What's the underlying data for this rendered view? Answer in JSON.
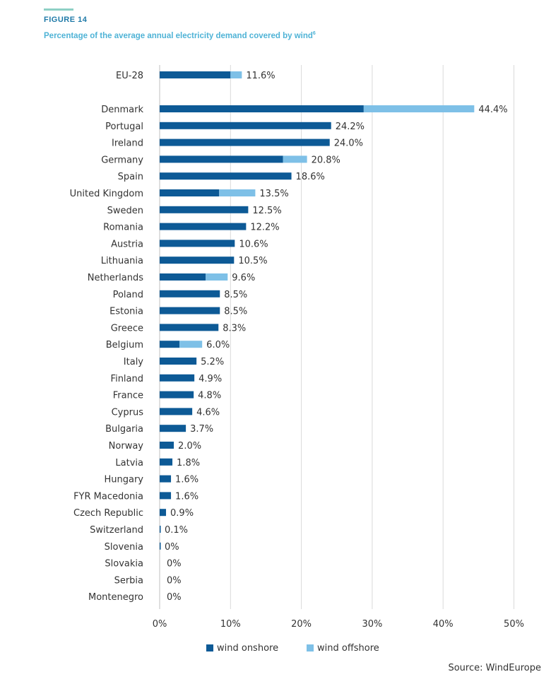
{
  "figure_label": "FIGURE 14",
  "title": "Percentage of the average annual electricity demand covered by wind",
  "title_footnote": "6",
  "source": "Source: WindEurope",
  "colors": {
    "onshore": "#0d5a96",
    "offshore": "#7ec0e7",
    "grid": "#d9d9d9",
    "accent_rule": "#8ed0c5"
  },
  "chart_data": {
    "type": "bar",
    "orientation": "horizontal",
    "stacked": true,
    "xlim": [
      0,
      50
    ],
    "xticks": [
      0,
      10,
      20,
      30,
      40,
      50
    ],
    "tick_labels": [
      "0%",
      "10%",
      "20%",
      "30%",
      "40%",
      "50%"
    ],
    "legend_position": "bottom",
    "grid": true,
    "series": [
      {
        "name": "wind onshore",
        "color": "#0d5a96",
        "values": [
          10.0,
          28.8,
          24.2,
          24.0,
          17.4,
          18.6,
          8.4,
          12.5,
          12.2,
          10.6,
          10.5,
          6.5,
          8.5,
          8.5,
          8.3,
          2.8,
          5.2,
          4.9,
          4.8,
          4.6,
          3.7,
          2.0,
          1.8,
          1.6,
          1.6,
          0.9,
          0.1,
          0.1,
          0,
          0,
          0
        ]
      },
      {
        "name": "wind offshore",
        "color": "#7ec0e7",
        "values": [
          1.6,
          15.6,
          0,
          0,
          3.4,
          0,
          5.1,
          0,
          0,
          0,
          0,
          3.1,
          0,
          0,
          0,
          3.2,
          0,
          0,
          0,
          0,
          0,
          0,
          0,
          0,
          0,
          0,
          0,
          0,
          0,
          0,
          0
        ]
      }
    ],
    "categories": [
      "EU-28",
      "Denmark",
      "Portugal",
      "Ireland",
      "Germany",
      "Spain",
      "United Kingdom",
      "Sweden",
      "Romania",
      "Austria",
      "Lithuania",
      "Netherlands",
      "Poland",
      "Estonia",
      "Greece",
      "Belgium",
      "Italy",
      "Finland",
      "France",
      "Cyprus",
      "Bulgaria",
      "Norway",
      "Latvia",
      "Hungary",
      "FYR Macedonia",
      "Czech Republic",
      "Switzerland",
      "Slovenia",
      "Slovakia",
      "Serbia",
      "Montenegro"
    ],
    "total_labels": [
      "11.6%",
      "44.4%",
      "24.2%",
      "24.0%",
      "20.8%",
      "18.6%",
      "13.5%",
      "12.5%",
      "12.2%",
      "10.6%",
      "10.5%",
      "9.6%",
      "8.5%",
      "8.5%",
      "8.3%",
      "6.0%",
      "5.2%",
      "4.9%",
      "4.8%",
      "4.6%",
      "3.7%",
      "2.0%",
      "1.8%",
      "1.6%",
      "1.6%",
      "0.9%",
      "0.1%",
      "0%",
      "0%",
      "0%",
      "0%"
    ]
  }
}
